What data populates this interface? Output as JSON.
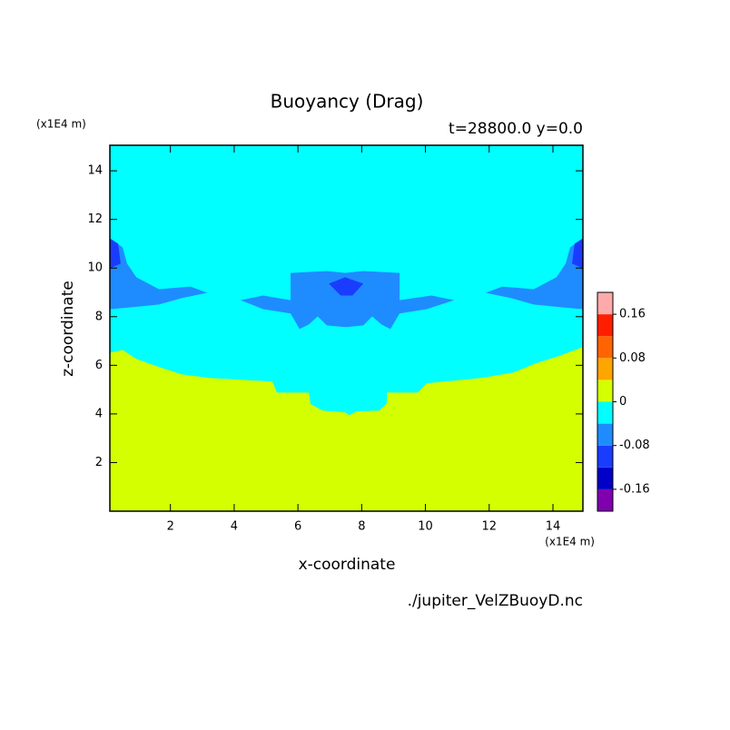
{
  "chart_data": {
    "type": "contour",
    "title": "Buoyancy (Drag)",
    "subtitle": "t=28800.0 y=0.0",
    "x_label": "x-coordinate",
    "y_label": "z-coordinate",
    "x_unit": "(x1E4 m)",
    "y_unit": "(x1E4 m)",
    "source": "./jupiter_VelZBuoyD.nc",
    "xlim": [
      0.1,
      14.94
    ],
    "ylim": [
      0,
      15.05
    ],
    "xticks": [
      2,
      4,
      6,
      8,
      10,
      12,
      14
    ],
    "yticks": [
      2,
      4,
      6,
      8,
      10,
      12,
      14
    ],
    "levels": [
      -0.2,
      -0.16,
      -0.12,
      -0.08,
      -0.04,
      0,
      0.04,
      0.08,
      0.12,
      0.16,
      0.2
    ],
    "colors": [
      "#8000b0",
      "#0000c8",
      "#1a3cff",
      "#1e8cff",
      "#00ffff",
      "#d4ff00",
      "#ffa500",
      "#ff6400",
      "#ff1e00",
      "#ffaaaa"
    ],
    "colorbar_ticks": [
      0.16,
      0.08,
      0,
      -0.08,
      -0.16
    ],
    "regions": [
      {
        "level": -0.04,
        "x": [
          0.1,
          14.94,
          14.94,
          0.1
        ],
        "z": [
          0,
          0,
          15.05,
          15.05
        ]
      },
      {
        "level": 0,
        "x": [
          0.1,
          0.5,
          0.93,
          1.64,
          2.35,
          3.21,
          5.2,
          5.34,
          6.34,
          6.4,
          6.77,
          7.48,
          7.62,
          7.82,
          8.56,
          8.79,
          8.79,
          9.76,
          10.04,
          11.75,
          12.75,
          13.46,
          14.17,
          14.94,
          14.94,
          0.1
        ],
        "z": [
          6.52,
          6.63,
          6.26,
          5.93,
          5.63,
          5.48,
          5.33,
          4.88,
          4.88,
          4.4,
          4.14,
          4.06,
          3.95,
          4.1,
          4.14,
          4.44,
          4.88,
          4.88,
          5.26,
          5.48,
          5.7,
          6.08,
          6.37,
          6.75,
          0,
          0
        ]
      },
      {
        "level": -0.08,
        "x": [
          0.1,
          0.5,
          0.64,
          0.93,
          1.64,
          2.63,
          3.15,
          2.35,
          1.64,
          0.79,
          0.1
        ],
        "z": [
          11.22,
          10.85,
          10.18,
          9.62,
          9.13,
          9.24,
          8.98,
          8.76,
          8.5,
          8.39,
          8.31
        ]
      },
      {
        "level": -0.08,
        "x": [
          14.94,
          14.54,
          14.4,
          14.11,
          13.4,
          12.41,
          11.89,
          12.69,
          13.4,
          14.25,
          14.94
        ],
        "z": [
          11.22,
          10.85,
          10.18,
          9.62,
          9.13,
          9.24,
          8.98,
          8.76,
          8.5,
          8.39,
          8.31
        ]
      },
      {
        "level": -0.08,
        "x": [
          4.2,
          4.91,
          5.77,
          5.77,
          6.91,
          7.48,
          8.05,
          9.19,
          9.19,
          10.19,
          10.9,
          10.04,
          9.19,
          8.9,
          8.62,
          8.33,
          8.05,
          7.48,
          6.91,
          6.62,
          6.34,
          6.05,
          5.77,
          4.91
        ],
        "z": [
          8.68,
          8.87,
          8.68,
          9.8,
          9.88,
          9.8,
          9.88,
          9.8,
          8.68,
          8.87,
          8.68,
          8.31,
          8.13,
          7.49,
          7.68,
          8.01,
          7.64,
          7.57,
          7.64,
          8.01,
          7.68,
          7.49,
          8.13,
          8.31
        ]
      },
      {
        "level": -0.12,
        "x": [
          6.97,
          7.48,
          8.05,
          7.71,
          7.34
        ],
        "z": [
          9.36,
          9.62,
          9.36,
          8.87,
          8.87
        ]
      },
      {
        "level": -0.12,
        "x": [
          0.1,
          0.36,
          0.44,
          0.1
        ],
        "z": [
          11.22,
          11.0,
          10.18,
          9.99
        ]
      },
      {
        "level": -0.12,
        "x": [
          14.94,
          14.68,
          14.6,
          14.94
        ],
        "z": [
          11.22,
          11.0,
          10.18,
          9.99
        ]
      }
    ]
  }
}
